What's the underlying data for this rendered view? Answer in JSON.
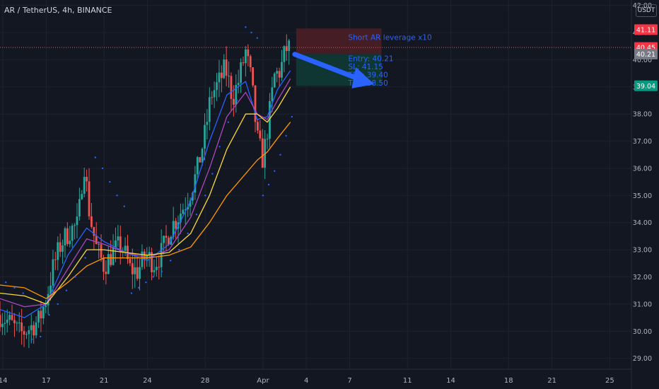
{
  "header": {
    "symbol_title": "AR / TetherUS, 4h, BINANCE",
    "currency": "USDT"
  },
  "annotation": {
    "title": "Short AR leverage x10",
    "lines": [
      "Entry: 40.21",
      "SL: 41.15",
      "TP1: 39.40",
      "TP2: 38.50"
    ]
  },
  "price_tags": [
    {
      "value": 41.11,
      "label": "41.11",
      "color": "#f23645"
    },
    {
      "value": 40.45,
      "label": "40.45",
      "color": "#f23645"
    },
    {
      "value": 40.21,
      "label": "40.21",
      "color": "#787b86"
    },
    {
      "value": 39.04,
      "label": "39.04",
      "color": "#089981"
    }
  ],
  "colors": {
    "background": "#131722",
    "grid": "#1e222d",
    "text": "#b2b5be",
    "bull": "#26a69a",
    "bear": "#ef5350",
    "ema_fast": "#2962ff",
    "ema_mid": "#ab47bc",
    "ema_slow": "#fdd835",
    "ema_long": "#ff9800",
    "psar": "#2962ff",
    "stop_zone": "#4a1e26",
    "target_zone": "#0f3a34",
    "arrow": "#2962ff"
  },
  "chart_data": {
    "type": "candlestick",
    "yaxis": {
      "range": [
        28.6,
        42.2
      ],
      "ticks": [
        "29.00",
        "30.00",
        "31.00",
        "32.00",
        "33.00",
        "34.00",
        "35.00",
        "36.00",
        "37.00",
        "38.00",
        "39.00",
        "40.00",
        "41.00",
        "42.00"
      ]
    },
    "xaxis": {
      "ticks": [
        {
          "label": "14",
          "day": 14
        },
        {
          "label": "17",
          "day": 17
        },
        {
          "label": "21",
          "day": 21
        },
        {
          "label": "24",
          "day": 24
        },
        {
          "label": "28",
          "day": 28
        },
        {
          "label": "Apr",
          "day": 32
        },
        {
          "label": "4",
          "day": 35
        },
        {
          "label": "7",
          "day": 38
        },
        {
          "label": "11",
          "day": 42
        },
        {
          "label": "14",
          "day": 45
        },
        {
          "label": "18",
          "day": 49
        },
        {
          "label": "21",
          "day": 52
        },
        {
          "label": "25",
          "day": 56
        }
      ],
      "range": [
        13.8,
        57.5
      ]
    },
    "price_path": [
      [
        13.8,
        30.6
      ],
      [
        14.5,
        30.3
      ],
      [
        15.2,
        29.9
      ],
      [
        15.8,
        30.1
      ],
      [
        16.5,
        30.4
      ],
      [
        17.0,
        31.2
      ],
      [
        17.5,
        32.4
      ],
      [
        18.0,
        33.2
      ],
      [
        18.6,
        33.7
      ],
      [
        19.2,
        33.9
      ],
      [
        19.6,
        36.3
      ],
      [
        20.0,
        34.3
      ],
      [
        20.5,
        33.0
      ],
      [
        21.0,
        32.4
      ],
      [
        21.6,
        32.9
      ],
      [
        22.2,
        33.2
      ],
      [
        22.8,
        32.3
      ],
      [
        23.3,
        32.2
      ],
      [
        23.9,
        32.8
      ],
      [
        24.5,
        32.5
      ],
      [
        25.0,
        32.9
      ],
      [
        25.6,
        33.8
      ],
      [
        26.2,
        34.3
      ],
      [
        26.8,
        34.9
      ],
      [
        27.4,
        35.8
      ],
      [
        28.0,
        37.3
      ],
      [
        28.4,
        38.7
      ],
      [
        28.9,
        39.1
      ],
      [
        29.4,
        39.7
      ],
      [
        29.9,
        38.6
      ],
      [
        30.3,
        39.2
      ],
      [
        30.8,
        40.3
      ],
      [
        31.2,
        39.2
      ],
      [
        31.6,
        37.1
      ],
      [
        32.0,
        36.3
      ],
      [
        32.4,
        37.8
      ],
      [
        32.8,
        39.4
      ],
      [
        33.2,
        39.6
      ],
      [
        33.6,
        40.4
      ],
      [
        33.9,
        40.45
      ]
    ],
    "series": [
      {
        "name": "",
        "values": [
          [
            13.8,
            30.8
          ],
          [
            15.5,
            30.5
          ],
          [
            17.0,
            31.0
          ],
          [
            18.5,
            32.8
          ],
          [
            19.8,
            33.8
          ],
          [
            21.0,
            33.3
          ],
          [
            22.5,
            32.9
          ],
          [
            24.0,
            32.6
          ],
          [
            25.5,
            33.2
          ],
          [
            27.0,
            34.8
          ],
          [
            28.3,
            37.0
          ],
          [
            29.5,
            38.7
          ],
          [
            30.8,
            39.2
          ],
          [
            31.6,
            37.8
          ],
          [
            32.3,
            37.9
          ],
          [
            33.0,
            38.9
          ],
          [
            33.9,
            39.6
          ]
        ]
      },
      {
        "name": "",
        "values": [
          [
            13.8,
            31.2
          ],
          [
            15.5,
            30.9
          ],
          [
            17.0,
            31.0
          ],
          [
            18.5,
            32.3
          ],
          [
            19.8,
            33.4
          ],
          [
            21.0,
            33.2
          ],
          [
            22.5,
            32.9
          ],
          [
            24.0,
            32.7
          ],
          [
            25.5,
            33.0
          ],
          [
            27.0,
            34.2
          ],
          [
            28.3,
            36.0
          ],
          [
            29.5,
            37.9
          ],
          [
            30.8,
            38.8
          ],
          [
            31.6,
            38.0
          ],
          [
            32.3,
            37.8
          ],
          [
            33.0,
            38.5
          ],
          [
            33.9,
            39.3
          ]
        ]
      },
      {
        "name": "",
        "values": [
          [
            13.8,
            31.4
          ],
          [
            15.5,
            31.3
          ],
          [
            17.0,
            31.0
          ],
          [
            18.5,
            32.0
          ],
          [
            19.8,
            33.0
          ],
          [
            21.0,
            33.0
          ],
          [
            22.5,
            32.9
          ],
          [
            24.0,
            32.8
          ],
          [
            25.5,
            32.9
          ],
          [
            27.0,
            33.6
          ],
          [
            28.3,
            35.0
          ],
          [
            29.5,
            36.7
          ],
          [
            30.8,
            38.0
          ],
          [
            31.6,
            38.0
          ],
          [
            32.3,
            37.7
          ],
          [
            33.0,
            38.2
          ],
          [
            33.9,
            39.0
          ]
        ]
      },
      {
        "name": "",
        "values": [
          [
            13.8,
            31.7
          ],
          [
            15.5,
            31.6
          ],
          [
            17.0,
            31.2
          ],
          [
            18.5,
            31.8
          ],
          [
            19.8,
            32.4
          ],
          [
            21.0,
            32.7
          ],
          [
            22.5,
            32.7
          ],
          [
            24.0,
            32.7
          ],
          [
            25.5,
            32.8
          ],
          [
            27.0,
            33.1
          ],
          [
            28.3,
            34.0
          ],
          [
            29.5,
            35.0
          ],
          [
            30.8,
            35.8
          ],
          [
            31.6,
            36.3
          ],
          [
            32.3,
            36.6
          ],
          [
            33.0,
            37.1
          ],
          [
            33.9,
            37.7
          ]
        ]
      }
    ],
    "psar": [
      [
        14.2,
        31.8
      ],
      [
        14.8,
        31.6
      ],
      [
        15.4,
        31.4
      ],
      [
        16.0,
        29.7
      ],
      [
        16.6,
        29.8
      ],
      [
        17.2,
        30.6
      ],
      [
        17.8,
        31.0
      ],
      [
        18.4,
        31.5
      ],
      [
        19.0,
        32.0
      ],
      [
        19.7,
        32.7
      ],
      [
        20.4,
        36.4
      ],
      [
        20.9,
        36.0
      ],
      [
        21.4,
        35.5
      ],
      [
        21.9,
        35.0
      ],
      [
        22.4,
        34.6
      ],
      [
        22.9,
        31.4
      ],
      [
        23.4,
        31.6
      ],
      [
        23.9,
        31.8
      ],
      [
        24.4,
        32.0
      ],
      [
        25.0,
        32.2
      ],
      [
        25.6,
        32.6
      ],
      [
        26.2,
        33.0
      ],
      [
        26.8,
        33.6
      ],
      [
        27.4,
        34.3
      ],
      [
        28.0,
        35.0
      ],
      [
        28.5,
        35.8
      ],
      [
        29.0,
        36.8
      ],
      [
        29.6,
        37.7
      ],
      [
        30.2,
        38.5
      ],
      [
        30.8,
        41.2
      ],
      [
        31.2,
        41.0
      ],
      [
        31.6,
        40.8
      ],
      [
        32.0,
        35.0
      ],
      [
        32.4,
        35.4
      ],
      [
        32.8,
        35.9
      ],
      [
        33.2,
        36.5
      ],
      [
        33.6,
        37.2
      ],
      [
        34.0,
        37.9
      ]
    ]
  }
}
